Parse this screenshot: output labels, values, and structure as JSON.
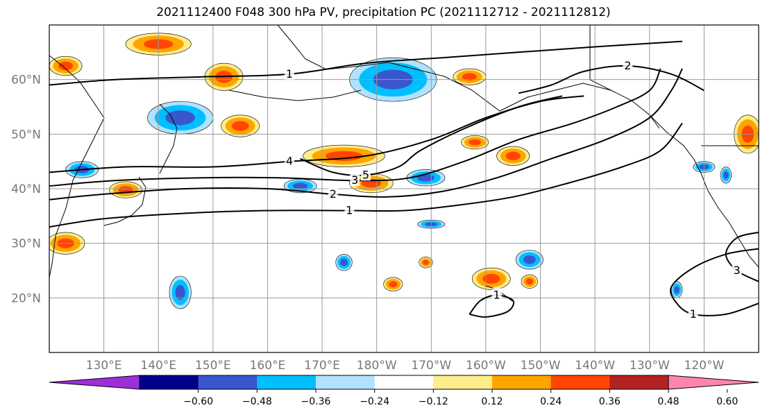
{
  "title": "2021112400 F048 300 hPa PV, precipitation PC (2021112712 - 2021112812)",
  "map": {
    "projection": "cylindrical",
    "lon_range": [
      120,
      250
    ],
    "lat_range": [
      10,
      70
    ],
    "lat_ticks": [
      {
        "lat": 20,
        "label": "20°N"
      },
      {
        "lat": 30,
        "label": "30°N"
      },
      {
        "lat": 40,
        "label": "40°N"
      },
      {
        "lat": 50,
        "label": "50°N"
      },
      {
        "lat": 60,
        "label": "60°N"
      }
    ],
    "lon_ticks": [
      {
        "lon": 130,
        "label": "130°E"
      },
      {
        "lon": 140,
        "label": "140°E"
      },
      {
        "lon": 150,
        "label": "150°E"
      },
      {
        "lon": 160,
        "label": "160°E"
      },
      {
        "lon": 170,
        "label": "170°E"
      },
      {
        "lon": 180,
        "label": "180°W"
      },
      {
        "lon": 190,
        "label": "170°W"
      },
      {
        "lon": 200,
        "label": "160°W"
      },
      {
        "lon": 210,
        "label": "150°W"
      },
      {
        "lon": 220,
        "label": "140°W"
      },
      {
        "lon": 230,
        "label": "130°W"
      },
      {
        "lon": 240,
        "label": "120°W"
      }
    ],
    "grid_color": "#999999",
    "pv_contours": [
      {
        "level": "1",
        "points": [
          [
            120,
            33
          ],
          [
            130,
            34.5
          ],
          [
            145,
            35.5
          ],
          [
            160,
            36
          ],
          [
            175,
            36
          ],
          [
            185,
            36
          ],
          [
            195,
            37
          ],
          [
            205,
            38.5
          ],
          [
            215,
            41
          ],
          [
            225,
            44
          ],
          [
            232,
            47
          ],
          [
            236,
            52
          ]
        ]
      },
      {
        "level": "2",
        "points": [
          [
            120,
            38
          ],
          [
            130,
            39
          ],
          [
            145,
            40
          ],
          [
            160,
            40
          ],
          [
            172,
            39
          ],
          [
            182,
            38.5
          ],
          [
            192,
            39.5
          ],
          [
            202,
            42
          ],
          [
            212,
            45.5
          ],
          [
            222,
            49
          ],
          [
            230,
            53
          ],
          [
            234,
            58
          ],
          [
            236,
            62
          ]
        ]
      },
      {
        "level": "3",
        "points": [
          [
            120,
            40.5
          ],
          [
            132,
            41.5
          ],
          [
            148,
            42
          ],
          [
            162,
            42
          ],
          [
            176,
            41.5
          ],
          [
            186,
            42
          ],
          [
            196,
            45
          ],
          [
            206,
            49
          ],
          [
            216,
            52
          ],
          [
            224,
            55
          ],
          [
            230,
            58
          ],
          [
            232,
            62
          ]
        ]
      },
      {
        "level": "4",
        "points": [
          [
            120,
            43
          ],
          [
            134,
            44
          ],
          [
            150,
            44
          ],
          [
            164,
            45
          ],
          [
            178,
            46
          ],
          [
            190,
            49
          ],
          [
            200,
            53
          ],
          [
            210,
            56
          ],
          [
            218,
            57
          ]
        ]
      },
      {
        "level": "5",
        "points": [
          [
            166,
            45.5
          ],
          [
            172,
            43
          ],
          [
            178,
            42.5
          ],
          [
            184,
            44
          ],
          [
            188,
            47
          ],
          [
            196,
            51
          ],
          [
            206,
            55
          ],
          [
            214,
            57
          ]
        ]
      },
      {
        "level": "1",
        "points": [
          [
            120,
            59
          ],
          [
            132,
            60
          ],
          [
            148,
            60.5
          ],
          [
            164,
            61
          ],
          [
            178,
            63
          ],
          [
            192,
            64
          ],
          [
            206,
            65
          ],
          [
            220,
            66
          ],
          [
            236,
            67
          ]
        ]
      },
      {
        "level": "2",
        "points": [
          [
            240,
            58
          ],
          [
            234,
            61
          ],
          [
            226,
            62.5
          ],
          [
            218,
            61.5
          ],
          [
            212,
            59
          ],
          [
            206,
            57.5
          ]
        ]
      },
      {
        "level": "1",
        "points": [
          [
            197,
            17
          ],
          [
            199,
            19.5
          ],
          [
            202,
            20.5
          ],
          [
            205,
            19.5
          ],
          [
            204,
            17.5
          ],
          [
            200,
            16.5
          ],
          [
            197,
            17
          ]
        ]
      },
      {
        "level": "1",
        "points": [
          [
            250,
            19
          ],
          [
            244,
            17
          ],
          [
            238,
            17
          ],
          [
            235,
            19
          ],
          [
            234,
            22
          ],
          [
            238,
            25.5
          ],
          [
            244,
            28
          ],
          [
            250,
            29
          ]
        ]
      },
      {
        "level": "3",
        "points": [
          [
            250,
            23
          ],
          [
            246,
            25
          ],
          [
            244,
            28
          ],
          [
            246,
            31
          ],
          [
            250,
            32
          ]
        ]
      }
    ],
    "precip_patches": [
      {
        "level": "pos",
        "center": [
          140,
          66.5
        ],
        "size": [
          12,
          4
        ]
      },
      {
        "level": "pos",
        "center": [
          123,
          62.5
        ],
        "size": [
          6,
          3.5
        ]
      },
      {
        "level": "pos",
        "center": [
          152,
          60.5
        ],
        "size": [
          7,
          5
        ]
      },
      {
        "level": "pos",
        "center": [
          155,
          51.5
        ],
        "size": [
          7,
          4
        ]
      },
      {
        "level": "pos",
        "center": [
          174,
          46
        ],
        "size": [
          15,
          4
        ]
      },
      {
        "level": "pos",
        "center": [
          179,
          41
        ],
        "size": [
          8,
          3.5
        ]
      },
      {
        "level": "pos",
        "center": [
          134,
          39.8
        ],
        "size": [
          6,
          3
        ]
      },
      {
        "level": "pos",
        "center": [
          123,
          30
        ],
        "size": [
          7,
          4
        ]
      },
      {
        "level": "pos",
        "center": [
          197,
          60.5
        ],
        "size": [
          6,
          3
        ]
      },
      {
        "level": "pos",
        "center": [
          198,
          48.5
        ],
        "size": [
          5,
          2.5
        ]
      },
      {
        "level": "pos",
        "center": [
          205,
          46
        ],
        "size": [
          6,
          3.5
        ]
      },
      {
        "level": "pos",
        "center": [
          201,
          23.5
        ],
        "size": [
          7,
          4
        ]
      },
      {
        "level": "pos",
        "center": [
          183,
          22.5
        ],
        "size": [
          3.5,
          2.5
        ]
      },
      {
        "level": "pos",
        "center": [
          189,
          26.5
        ],
        "size": [
          2.5,
          2
        ]
      },
      {
        "level": "pos",
        "center": [
          208,
          23
        ],
        "size": [
          3,
          2.5
        ]
      },
      {
        "level": "pos",
        "center": [
          248,
          50
        ],
        "size": [
          5,
          7
        ]
      },
      {
        "level": "neg",
        "center": [
          183,
          60
        ],
        "size": [
          16,
          8
        ]
      },
      {
        "level": "neg",
        "center": [
          144,
          53
        ],
        "size": [
          12,
          6
        ]
      },
      {
        "level": "neg",
        "center": [
          126,
          43.5
        ],
        "size": [
          6,
          3
        ]
      },
      {
        "level": "neg",
        "center": [
          189,
          42
        ],
        "size": [
          7,
          3
        ]
      },
      {
        "level": "neg",
        "center": [
          166,
          40.5
        ],
        "size": [
          6,
          2.5
        ]
      },
      {
        "level": "neg",
        "center": [
          190,
          33.5
        ],
        "size": [
          5,
          1.5
        ]
      },
      {
        "level": "neg",
        "center": [
          174,
          26.5
        ],
        "size": [
          3,
          3
        ]
      },
      {
        "level": "neg",
        "center": [
          208,
          27
        ],
        "size": [
          5,
          3.5
        ]
      },
      {
        "level": "neg",
        "center": [
          144,
          21
        ],
        "size": [
          4,
          6
        ]
      },
      {
        "level": "neg",
        "center": [
          235,
          21.5
        ],
        "size": [
          2,
          3
        ]
      },
      {
        "level": "neg",
        "center": [
          240,
          44
        ],
        "size": [
          4,
          2
        ]
      },
      {
        "level": "neg",
        "center": [
          244,
          42.5
        ],
        "size": [
          2,
          3
        ]
      }
    ]
  },
  "colorbar": {
    "colors": [
      "#9b30d9",
      "#00008b",
      "#3a56cc",
      "#00bfff",
      "#b0e2ff",
      "#ffffff",
      "#ffec8b",
      "#ffa500",
      "#ff4500",
      "#b22222",
      "#ff85b0"
    ],
    "ticks": [
      "−0.60",
      "−0.48",
      "−0.36",
      "−0.24",
      "−0.12",
      "0.12",
      "0.24",
      "0.36",
      "0.48",
      "0.60"
    ]
  }
}
